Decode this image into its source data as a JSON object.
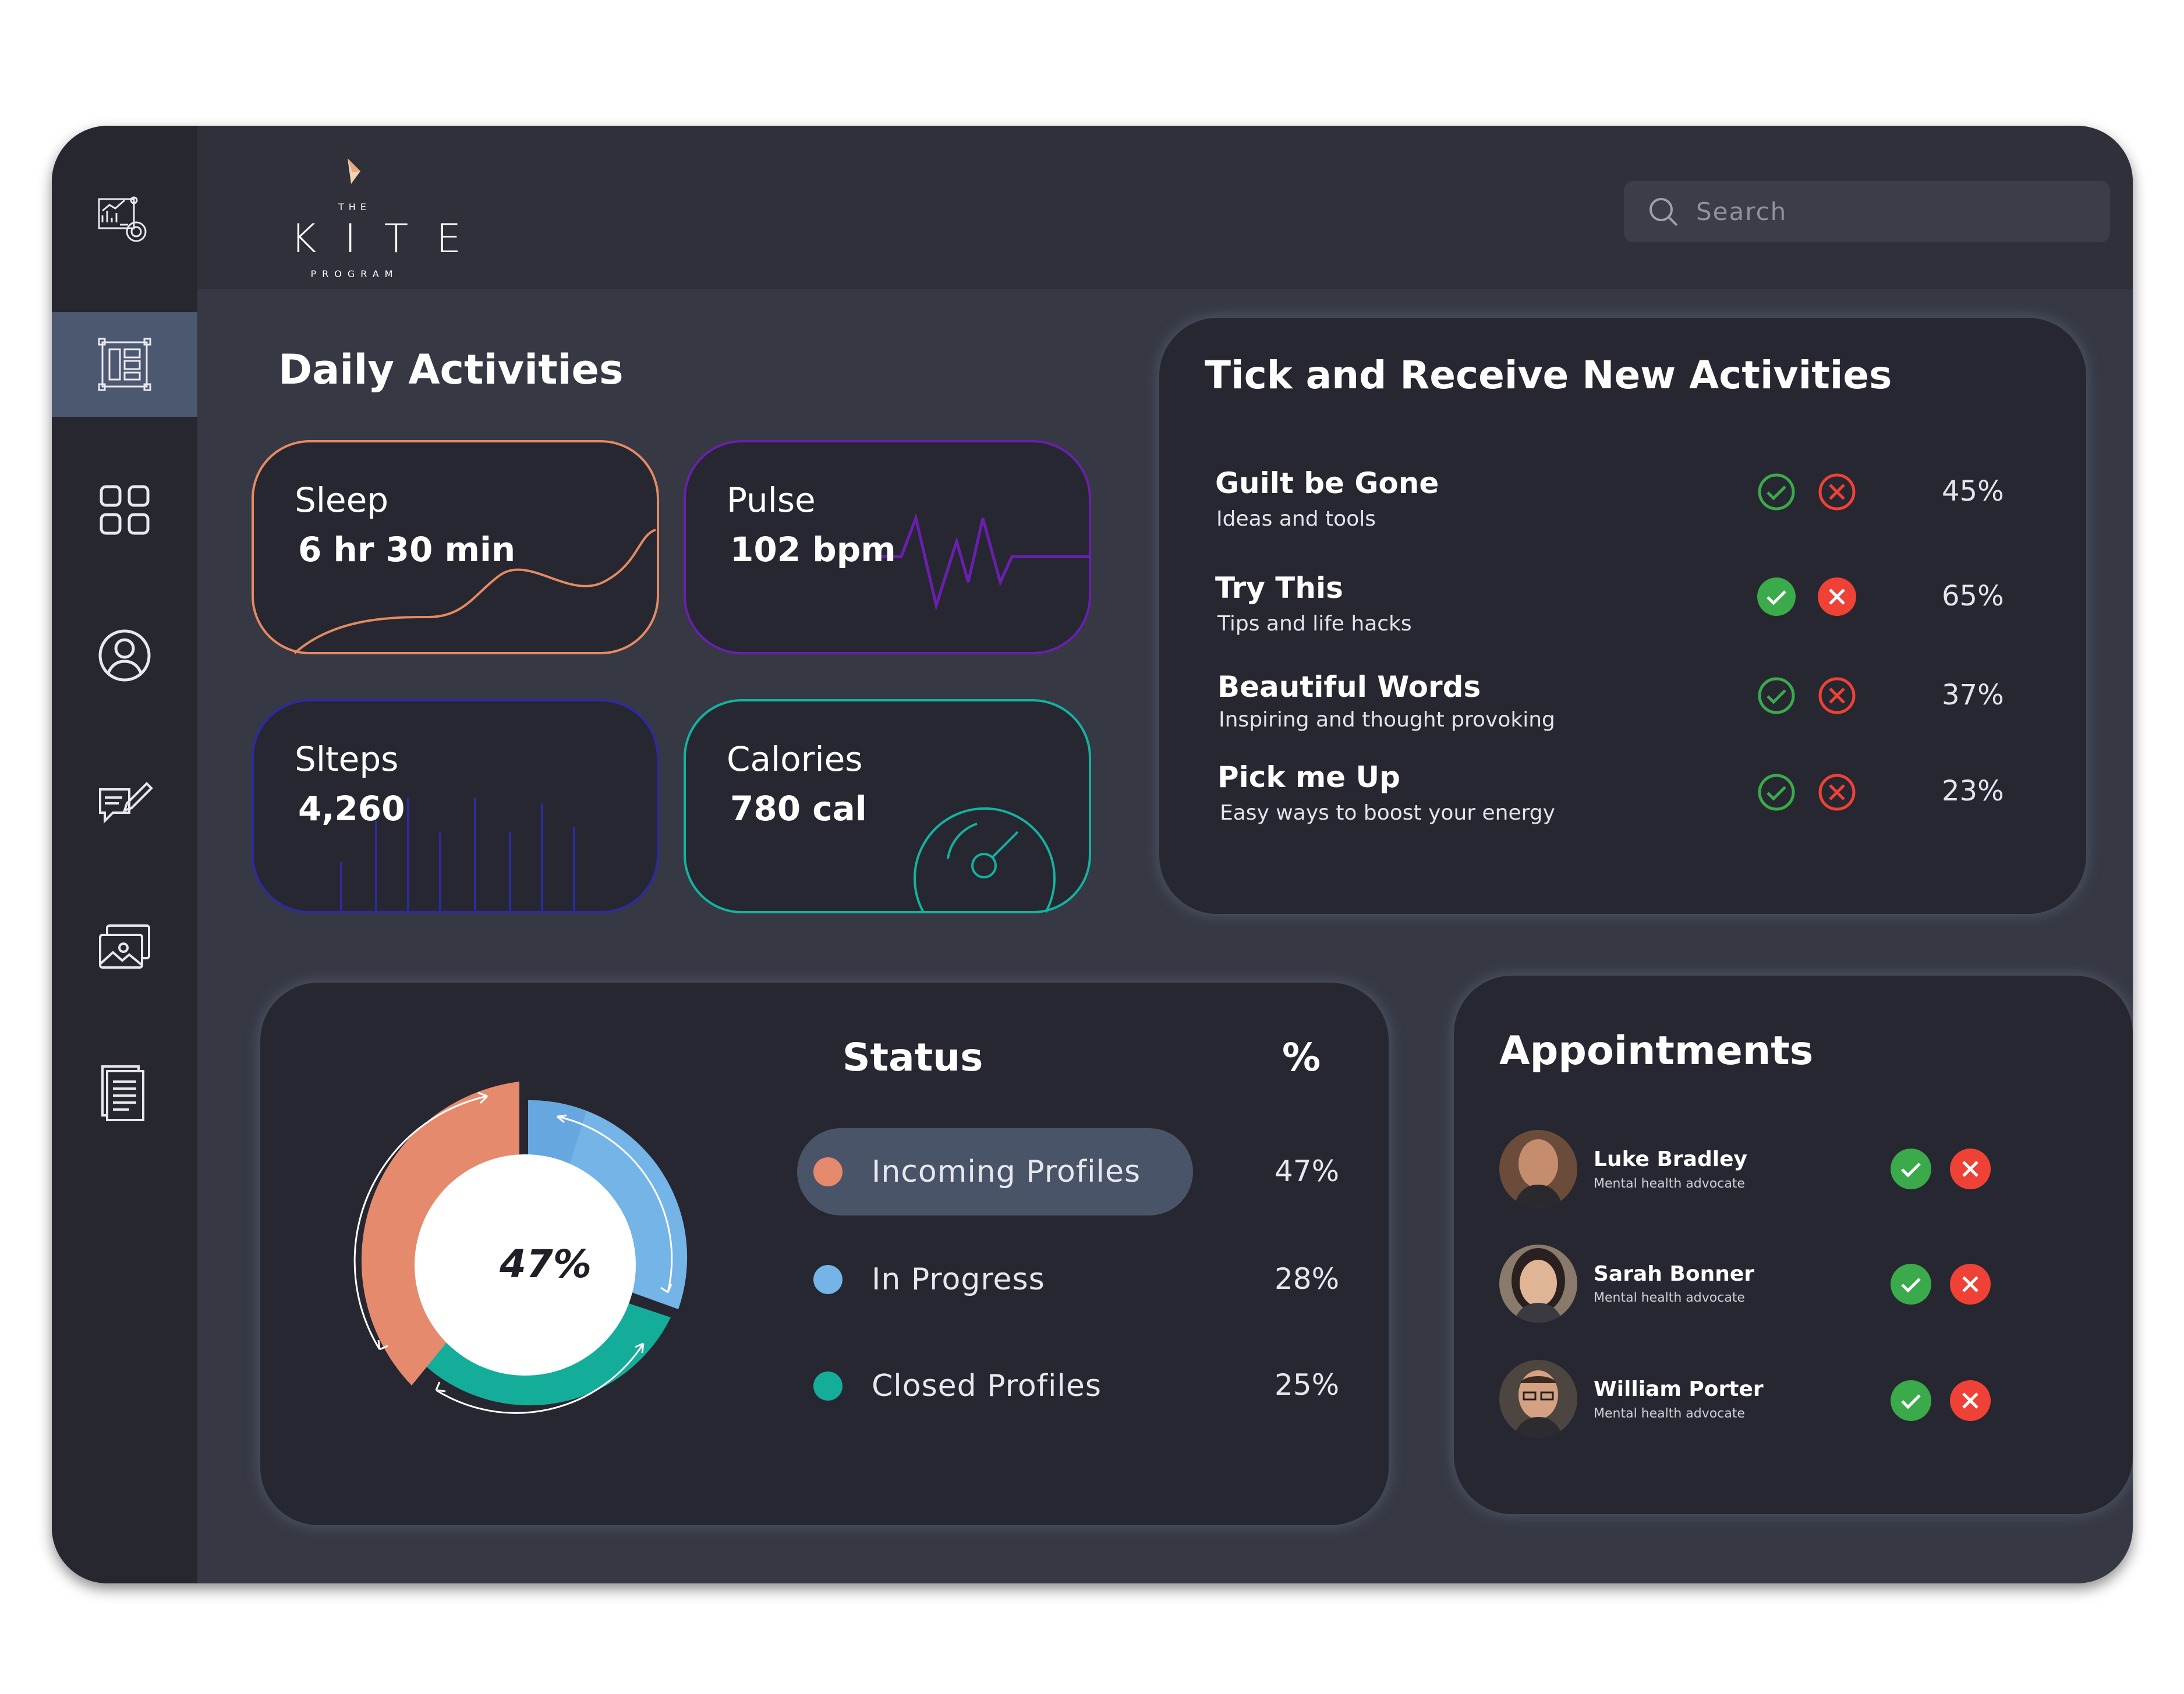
{
  "app": {
    "logo_the": "THE",
    "logo_name": "KITE",
    "logo_program": "PROGRAM"
  },
  "search": {
    "placeholder": "Search"
  },
  "sidebar": {
    "items": [
      {
        "name": "analytics-report-icon"
      },
      {
        "name": "dashboard-layout-icon",
        "active": true
      },
      {
        "name": "grid-apps-icon"
      },
      {
        "name": "user-profile-icon"
      },
      {
        "name": "chat-edit-icon"
      },
      {
        "name": "gallery-icon"
      },
      {
        "name": "document-icon"
      }
    ]
  },
  "daily": {
    "title": "Daily Activities",
    "cards": [
      {
        "label": "Sleep",
        "value": "6 hr 30 min",
        "color": "#e58a62"
      },
      {
        "label": "Pulse",
        "value": "102 bpm",
        "color": "#6a1fb0"
      },
      {
        "label": "Slteps",
        "value": "4,260",
        "color": "#2e2a9e"
      },
      {
        "label": "Calories",
        "value": "780 cal",
        "color": "#13b3a1"
      }
    ]
  },
  "activities": {
    "title": "Tick and Receive New Activities",
    "items": [
      {
        "title": "Guilt be Gone",
        "subtitle": "Ideas and tools",
        "percent": "45%",
        "style": "outline"
      },
      {
        "title": "Try This",
        "subtitle": "Tips and life hacks",
        "percent": "65%",
        "style": "filled"
      },
      {
        "title": "Beautiful Words",
        "subtitle": "Inspiring and thought provoking",
        "percent": "37%",
        "style": "outline"
      },
      {
        "title": "Pick me Up",
        "subtitle": "Easy ways to boost your energy",
        "percent": "23%",
        "style": "outline"
      }
    ],
    "colors": {
      "accept": "#3aaa4a",
      "reject": "#ef4136"
    }
  },
  "status": {
    "title": "Status",
    "pct_header": "%",
    "center_label": "47%",
    "rows": [
      {
        "label": "Incoming Profiles",
        "percent": "47%",
        "color": "#e58a6c",
        "selected": true
      },
      {
        "label": "In Progress",
        "percent": "28%",
        "color": "#74b4e6"
      },
      {
        "label": "Closed Profiles",
        "percent": "25%",
        "color": "#14ad9a"
      }
    ]
  },
  "appointments": {
    "title": "Appointments",
    "people": [
      {
        "name": "Luke Bradley",
        "role": "Mental health advocate"
      },
      {
        "name": "Sarah Bonner",
        "role": "Mental health advocate"
      },
      {
        "name": "William Porter",
        "role": "Mental health advocate"
      }
    ]
  }
}
